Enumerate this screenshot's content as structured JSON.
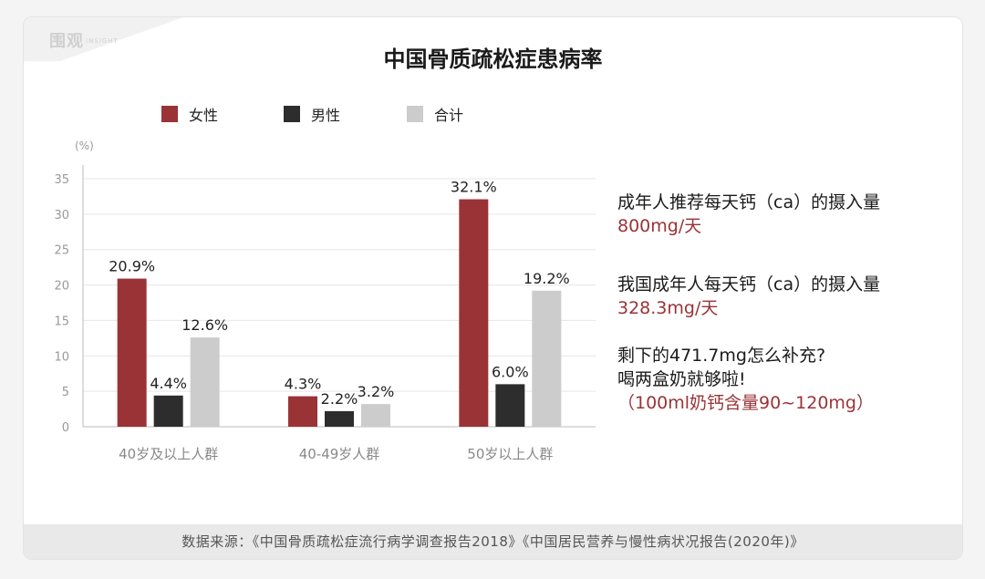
{
  "watermark": {
    "text": "围观",
    "subtext": "INSIGHT"
  },
  "title": "中国骨质疏松症患病率",
  "legend": [
    {
      "label": "女性",
      "color": "#9a3336"
    },
    {
      "label": "男性",
      "color": "#2d2d2d"
    },
    {
      "label": "合计",
      "color": "#cccccc"
    }
  ],
  "unit_label": "(%)",
  "chart_data": {
    "type": "bar",
    "title": "中国骨质疏松症患病率",
    "categories": [
      "40岁及以上人群",
      "40-49岁人群",
      "50岁以上人群"
    ],
    "series": [
      {
        "name": "女性",
        "values": [
          20.9,
          4.3,
          32.1
        ],
        "labels": [
          "20.9%",
          "4.3%",
          "32.1%"
        ],
        "color": "#9a3336"
      },
      {
        "name": "男性",
        "values": [
          4.4,
          2.2,
          6.0
        ],
        "labels": [
          "4.4%",
          "2.2%",
          "6.0%"
        ],
        "color": "#2d2d2d"
      },
      {
        "name": "合计",
        "values": [
          12.6,
          3.2,
          19.2
        ],
        "labels": [
          "12.6%",
          "3.2%",
          "19.2%"
        ],
        "color": "#cccccc"
      }
    ],
    "ylabel": "(%)",
    "ylim": [
      0,
      35
    ],
    "yticks": [
      0,
      5,
      10,
      15,
      20,
      25,
      30,
      35
    ],
    "grid": true,
    "legend_position": "top-left"
  },
  "side": {
    "block1_line1": "成年人推荐每天钙（ca）的摄入量",
    "block1_line2": "800mg/天",
    "block2_line1": "我国成年人每天钙（ca）的摄入量",
    "block2_line2": "328.3mg/天",
    "block3_line1": "剩下的471.7mg怎么补充?",
    "block3_line2": "喝两盒奶就够啦!",
    "block3_line3": "（100ml奶钙含量90~120mg）"
  },
  "footer": "数据来源：《中国骨质疏松症流行病学调查报告2018》《中国居民营养与慢性病状况报告(2020年)》"
}
